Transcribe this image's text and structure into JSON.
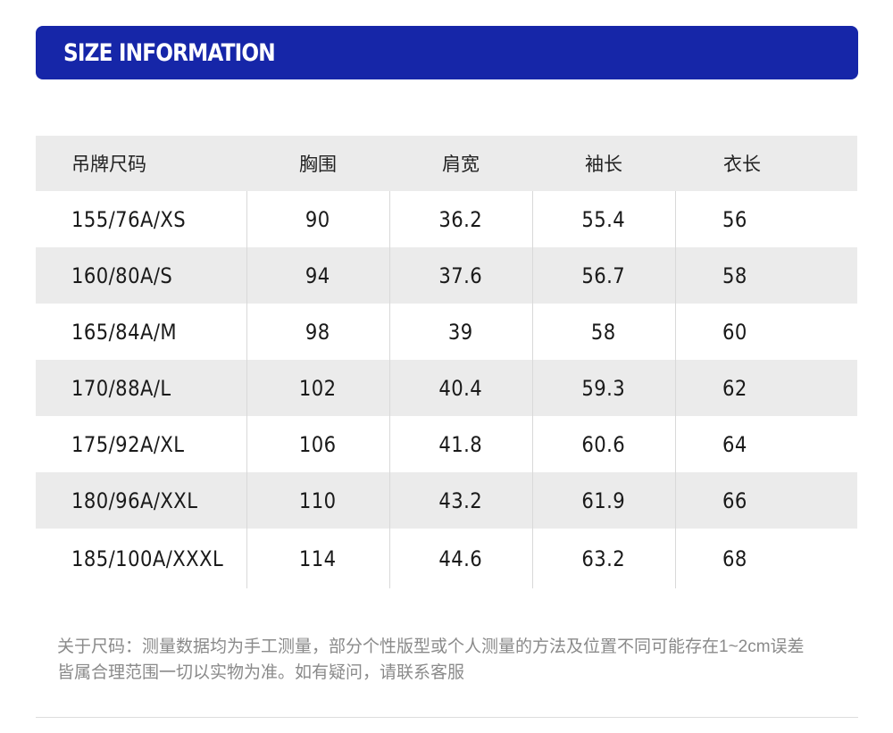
{
  "header": {
    "title": "SIZE INFORMATION",
    "background_color": "#1626a8"
  },
  "table": {
    "columns": [
      "吊牌尺码",
      "胸围",
      "肩宽",
      "袖长",
      "衣长"
    ],
    "rows": [
      [
        "155/76A/XS",
        "90",
        "36.2",
        "55.4",
        "56"
      ],
      [
        "160/80A/S",
        "94",
        "37.6",
        "56.7",
        "58"
      ],
      [
        "165/84A/M",
        "98",
        "39",
        "58",
        "60"
      ],
      [
        "170/88A/L",
        "102",
        "40.4",
        "59.3",
        "62"
      ],
      [
        "175/92A/XL",
        "106",
        "41.8",
        "60.6",
        "64"
      ],
      [
        "180/96A/XXL",
        "110",
        "43.2",
        "61.9",
        "66"
      ],
      [
        "185/100A/XXXL",
        "114",
        "44.6",
        "63.2",
        "68"
      ]
    ]
  },
  "note": {
    "line1": "关于尺码：测量数据均为手工测量，部分个性版型或个人测量的方法及位置不同可能存在1~2cm误差",
    "line2": "皆属合理范围一切以实物为准。如有疑问，请联系客服"
  }
}
